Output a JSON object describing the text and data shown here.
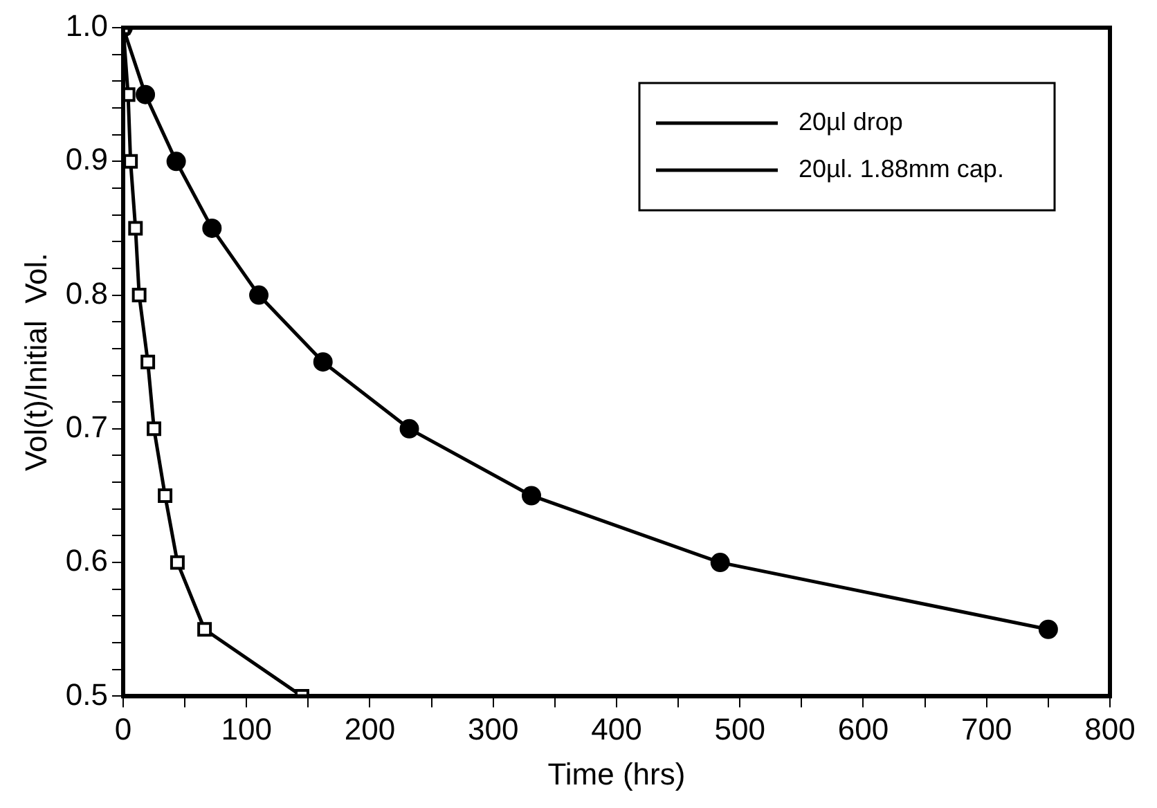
{
  "chart_data": {
    "type": "line",
    "xlabel": "Time (hrs)",
    "ylabel": "Vol(t)/Initial  Vol.",
    "xlim": [
      0,
      800
    ],
    "ylim": [
      0.5,
      1.0
    ],
    "xticks": [
      0,
      {
        "value": 50,
        "label": null
      },
      100,
      {
        "value": 150,
        "label": null
      },
      200,
      {
        "value": 250,
        "label": null
      },
      300,
      {
        "value": 350,
        "label": null
      },
      400,
      {
        "value": 450,
        "label": null
      },
      500,
      {
        "value": 550,
        "label": null
      },
      600,
      {
        "value": 650,
        "label": null
      },
      700,
      {
        "value": 750,
        "label": null
      },
      800
    ],
    "yticks": [
      0.5,
      {
        "value": 0.52,
        "label": null
      },
      {
        "value": 0.54,
        "label": null
      },
      {
        "value": 0.56,
        "label": null
      },
      {
        "value": 0.58,
        "label": null
      },
      0.6,
      {
        "value": 0.62,
        "label": null
      },
      {
        "value": 0.64,
        "label": null
      },
      {
        "value": 0.66,
        "label": null
      },
      {
        "value": 0.68,
        "label": null
      },
      0.7,
      {
        "value": 0.72,
        "label": null
      },
      {
        "value": 0.74,
        "label": null
      },
      {
        "value": 0.76,
        "label": null
      },
      {
        "value": 0.78,
        "label": null
      },
      0.8,
      {
        "value": 0.82,
        "label": null
      },
      {
        "value": 0.84,
        "label": null
      },
      {
        "value": 0.86,
        "label": null
      },
      {
        "value": 0.88,
        "label": null
      },
      0.9,
      {
        "value": 0.92,
        "label": null
      },
      {
        "value": 0.94,
        "label": null
      },
      {
        "value": 0.96,
        "label": null
      },
      {
        "value": 0.98,
        "label": null
      },
      {
        "value": 1.0,
        "label": "1.0"
      }
    ],
    "grid": false,
    "legend": "top right",
    "series": [
      {
        "name": "20µl drop",
        "color": "#000000",
        "marker": "square",
        "x": [
          0,
          4,
          6,
          10,
          13,
          20,
          25,
          34,
          44,
          66,
          145
        ],
        "values": [
          1.0,
          0.95,
          0.9,
          0.85,
          0.8,
          0.75,
          0.7,
          0.65,
          0.6,
          0.55,
          0.5
        ]
      },
      {
        "name": "20µl. 1.88mm cap.",
        "color": "#000000",
        "marker": "circle",
        "x": [
          0,
          18,
          43,
          72,
          110,
          162,
          232,
          331,
          484,
          750
        ],
        "values": [
          1.0,
          0.95,
          0.9,
          0.85,
          0.8,
          0.75,
          0.7,
          0.65,
          0.6,
          0.55
        ]
      }
    ]
  }
}
